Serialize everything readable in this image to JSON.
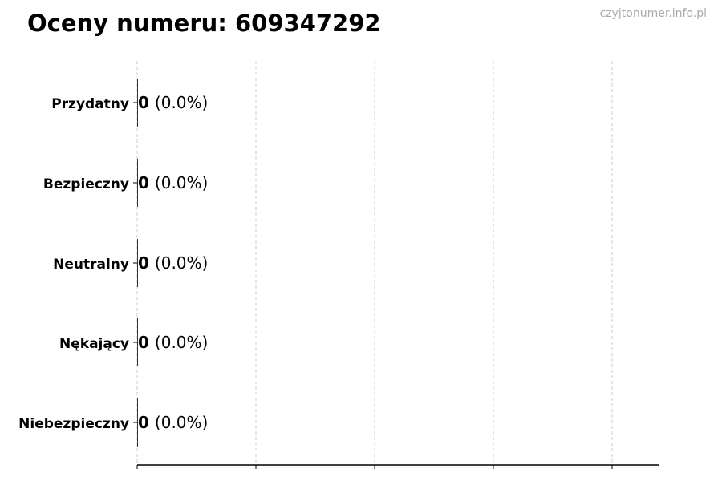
{
  "title": "Oceny numeru: 609347292",
  "watermark": "czyjtonumer.info.pl",
  "chart_data": {
    "type": "bar",
    "orientation": "horizontal",
    "title": "Oceny numeru: 609347292",
    "categories": [
      "Przydatny",
      "Bezpieczny",
      "Neutralny",
      "Nękający",
      "Niebezpieczny"
    ],
    "values": [
      0,
      0,
      0,
      0,
      0
    ],
    "percent_labels": [
      "(0.0%)",
      "(0.0%)",
      "(0.0%)",
      "(0.0%)",
      "(0.0%)"
    ],
    "xlabel": "",
    "ylabel": "",
    "grid": "x, dashed",
    "bar_color": "#333333",
    "grid_color": "#cccccc"
  }
}
